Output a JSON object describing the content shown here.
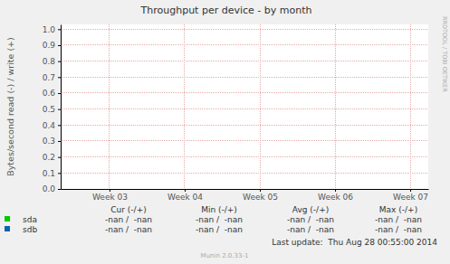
{
  "chart_data": {
    "type": "line",
    "title": "Throughput per device - by month",
    "y_label": "Bytes/second read (-) / write (+)",
    "x": [
      2.35,
      7.24
    ],
    "xlim": [
      2.35,
      7.24
    ],
    "xticks": [
      {
        "value": 3,
        "label": "Week 03"
      },
      {
        "value": 4,
        "label": "Week 04"
      },
      {
        "value": 5,
        "label": "Week 05"
      },
      {
        "value": 6,
        "label": "Week 06"
      },
      {
        "value": 7,
        "label": "Week 07"
      }
    ],
    "ylim": [
      0,
      1.03
    ],
    "yticks": [
      {
        "value": 0,
        "label": "0.0"
      },
      {
        "value": 0.1,
        "label": "0.1"
      },
      {
        "value": 0.2,
        "label": "0.2"
      },
      {
        "value": 0.3,
        "label": "0.3"
      },
      {
        "value": 0.4,
        "label": "0.4"
      },
      {
        "value": 0.5,
        "label": "0.5"
      },
      {
        "value": 0.6,
        "label": "0.6"
      },
      {
        "value": 0.7,
        "label": "0.7"
      },
      {
        "value": 0.8,
        "label": "0.8"
      },
      {
        "value": 0.9,
        "label": "0.9"
      },
      {
        "value": 1,
        "label": "1.0"
      }
    ],
    "grid": true,
    "stats_columns": [
      "Cur (-/+)",
      "Min (-/+)",
      "Avg (-/+)",
      "Max (-/+)"
    ],
    "series": [
      {
        "name": "sda",
        "color": "#00CC00",
        "values": [
          null,
          null
        ],
        "stats": [
          "-nan /  -nan",
          "-nan /  -nan",
          "-nan /  -nan",
          "-nan /  -nan"
        ]
      },
      {
        "name": "sdb",
        "color": "#0066B3",
        "values": [
          null,
          null
        ],
        "stats": [
          "-nan /  -nan",
          "-nan /  -nan",
          "-nan /  -nan",
          "-nan /  -nan"
        ]
      }
    ],
    "footer": "Last update:  Thu Aug 28 00:55:00 2014",
    "credit": "Munin 2.0.33-1",
    "watermark": "RRDTOOL / TOBI OETIKER"
  }
}
